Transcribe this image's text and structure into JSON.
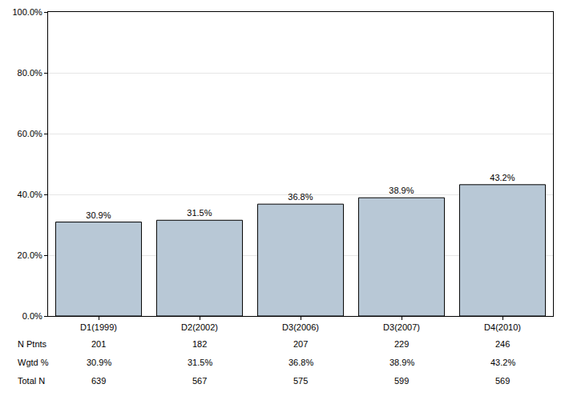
{
  "chart_data": {
    "type": "bar",
    "categories": [
      "D1(1999)",
      "D2(2002)",
      "D3(2006)",
      "D3(2007)",
      "D4(2010)"
    ],
    "values": [
      30.9,
      31.5,
      36.8,
      38.9,
      43.2
    ],
    "value_labels": [
      "30.9%",
      "31.5%",
      "36.8%",
      "38.9%",
      "43.2%"
    ],
    "data_labels": true,
    "color": "#b8c8d6",
    "ylim": [
      0,
      100
    ],
    "yticks": [
      {
        "value": 0,
        "label": "0.0%"
      },
      {
        "value": 20,
        "label": "20.0%"
      },
      {
        "value": 40,
        "label": "40.0%"
      },
      {
        "value": 60,
        "label": "60.0%"
      },
      {
        "value": 80,
        "label": "80.0%"
      },
      {
        "value": 100,
        "label": "100.0%"
      }
    ],
    "grid": true
  },
  "table": {
    "rows": [
      {
        "label": "N Ptnts",
        "cells": [
          "201",
          "182",
          "207",
          "229",
          "246"
        ]
      },
      {
        "label": "Wgtd %",
        "cells": [
          "30.9%",
          "31.5%",
          "36.8%",
          "38.9%",
          "43.2%"
        ]
      },
      {
        "label": "Total N",
        "cells": [
          "639",
          "567",
          "575",
          "599",
          "569"
        ]
      }
    ]
  }
}
